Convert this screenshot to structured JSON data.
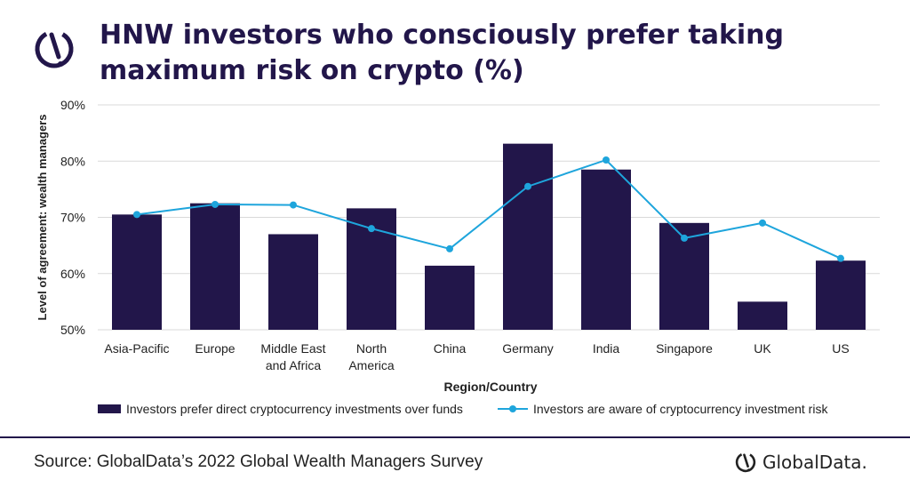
{
  "header": {
    "title": "HNW investors who consciously prefer taking maximum risk on crypto (%)"
  },
  "footer": {
    "source": "Source: GlobalData’s 2022 Global Wealth Managers Survey",
    "brand": "GlobalData."
  },
  "colors": {
    "bars": "#22164a",
    "line": "#1ea5dc",
    "grid": "#d9d9d9",
    "accent": "#22164a"
  },
  "chart_data": {
    "type": "bar",
    "categories": [
      [
        "Asia-Pacific"
      ],
      [
        "Europe"
      ],
      [
        "Middle East",
        "and Africa"
      ],
      [
        "North",
        "America"
      ],
      [
        "China"
      ],
      [
        "Germany"
      ],
      [
        "India"
      ],
      [
        "Singapore"
      ],
      [
        "UK"
      ],
      [
        "US"
      ]
    ],
    "series": [
      {
        "name": "Investors prefer direct cryptocurrency investments over funds",
        "kind": "bar",
        "values": [
          70.5,
          72.5,
          67,
          71.6,
          61.4,
          83.1,
          78.5,
          69,
          55,
          62.3
        ]
      },
      {
        "name": "Investors are aware of cryptocurrency investment risk",
        "kind": "line",
        "values": [
          70.5,
          72.3,
          72.2,
          68,
          64.4,
          75.5,
          80.2,
          66.3,
          69,
          62.7
        ]
      }
    ],
    "xlabel": "Region/Country",
    "ylabel": "Level of agreement: wealth managers",
    "ylim": [
      50,
      90
    ],
    "yticks": [
      50,
      60,
      70,
      80,
      90
    ],
    "ytick_format": "%",
    "grid": true,
    "legend_position": "bottom"
  }
}
